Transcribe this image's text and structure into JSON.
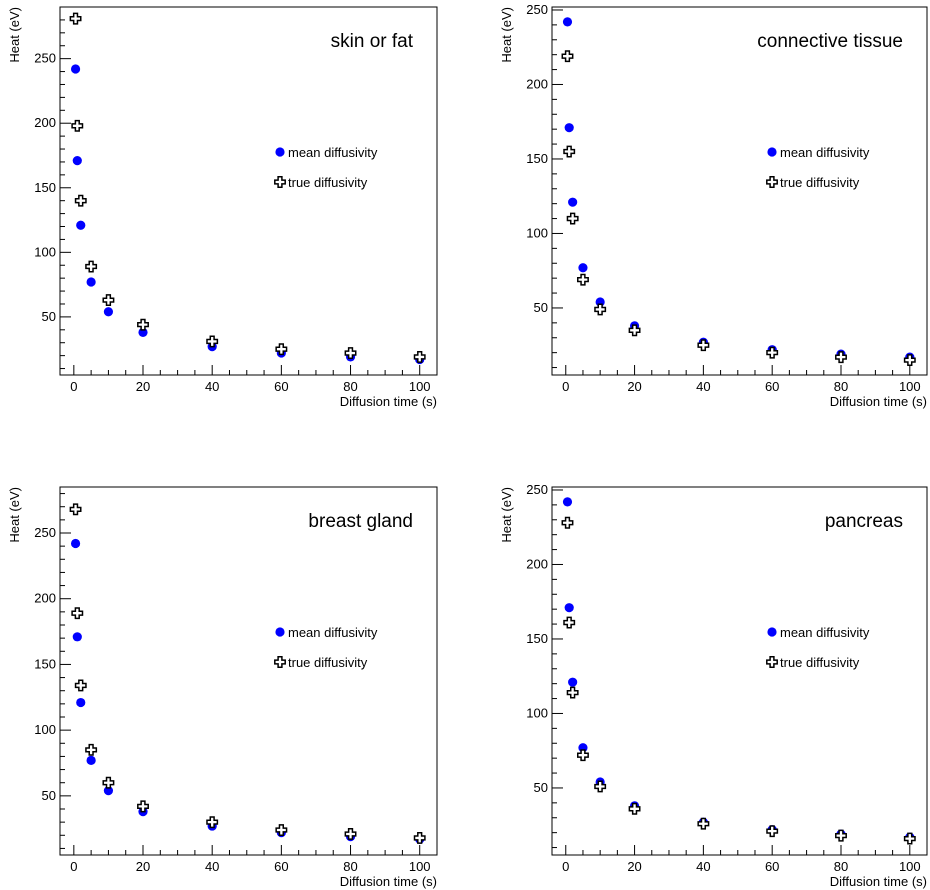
{
  "chart_data": [
    {
      "type": "scatter",
      "title": "skin or fat",
      "xlabel": "Diffusion time (s)",
      "ylabel": "Heat (eV)",
      "xlim": [
        -4,
        105
      ],
      "ylim": [
        5,
        290
      ],
      "xticks": [
        0,
        20,
        40,
        60,
        80,
        100
      ],
      "yticks": [
        50,
        100,
        150,
        200,
        250
      ],
      "legend_position": "right",
      "series": [
        {
          "name": "mean diffusivity",
          "marker": "circle",
          "color": "#0000ff",
          "x": [
            0.5,
            1,
            2,
            5,
            10,
            20,
            40,
            60,
            80,
            100
          ],
          "y": [
            242,
            171,
            121,
            77,
            54,
            38,
            27,
            22,
            19,
            17
          ]
        },
        {
          "name": "true diffusivity",
          "marker": "open-cross",
          "color": "#000000",
          "x": [
            0.5,
            1,
            2,
            5,
            10,
            20,
            40,
            60,
            80,
            100
          ],
          "y": [
            281,
            198,
            140,
            89,
            63,
            44,
            31,
            25,
            22,
            19
          ]
        }
      ]
    },
    {
      "type": "scatter",
      "title": "connective tissue",
      "xlabel": "Diffusion time (s)",
      "ylabel": "Heat (eV)",
      "xlim": [
        -4,
        105
      ],
      "ylim": [
        5,
        252
      ],
      "xticks": [
        0,
        20,
        40,
        60,
        80,
        100
      ],
      "yticks": [
        50,
        100,
        150,
        200,
        250
      ],
      "legend_position": "right",
      "series": [
        {
          "name": "mean diffusivity",
          "marker": "circle",
          "color": "#0000ff",
          "x": [
            0.5,
            1,
            2,
            5,
            10,
            20,
            40,
            60,
            80,
            100
          ],
          "y": [
            242,
            171,
            121,
            77,
            54,
            38,
            27,
            22,
            19,
            17
          ]
        },
        {
          "name": "true diffusivity",
          "marker": "open-cross",
          "color": "#000000",
          "x": [
            0.5,
            1,
            2,
            5,
            10,
            20,
            40,
            60,
            80,
            100
          ],
          "y": [
            219,
            155,
            110,
            69,
            49,
            35,
            25,
            20,
            17,
            15
          ]
        }
      ]
    },
    {
      "type": "scatter",
      "title": "breast gland",
      "xlabel": "Diffusion time (s)",
      "ylabel": "Heat (eV)",
      "xlim": [
        -4,
        105
      ],
      "ylim": [
        5,
        285
      ],
      "xticks": [
        0,
        20,
        40,
        60,
        80,
        100
      ],
      "yticks": [
        50,
        100,
        150,
        200,
        250
      ],
      "legend_position": "right",
      "series": [
        {
          "name": "mean diffusivity",
          "marker": "circle",
          "color": "#0000ff",
          "x": [
            0.5,
            1,
            2,
            5,
            10,
            20,
            40,
            60,
            80,
            100
          ],
          "y": [
            242,
            171,
            121,
            77,
            54,
            38,
            27,
            22,
            19,
            17
          ]
        },
        {
          "name": "true diffusivity",
          "marker": "open-cross",
          "color": "#000000",
          "x": [
            0.5,
            1,
            2,
            5,
            10,
            20,
            40,
            60,
            80,
            100
          ],
          "y": [
            268,
            189,
            134,
            85,
            60,
            42,
            30,
            24,
            21,
            18
          ]
        }
      ]
    },
    {
      "type": "scatter",
      "title": "pancreas",
      "xlabel": "Diffusion time (s)",
      "ylabel": "Heat (eV)",
      "xlim": [
        -4,
        105
      ],
      "ylim": [
        5,
        252
      ],
      "xticks": [
        0,
        20,
        40,
        60,
        80,
        100
      ],
      "yticks": [
        50,
        100,
        150,
        200,
        250
      ],
      "legend_position": "right",
      "series": [
        {
          "name": "mean diffusivity",
          "marker": "circle",
          "color": "#0000ff",
          "x": [
            0.5,
            1,
            2,
            5,
            10,
            20,
            40,
            60,
            80,
            100
          ],
          "y": [
            242,
            171,
            121,
            77,
            54,
            38,
            27,
            22,
            19,
            17
          ]
        },
        {
          "name": "true diffusivity",
          "marker": "open-cross",
          "color": "#000000",
          "x": [
            0.5,
            1,
            2,
            5,
            10,
            20,
            40,
            60,
            80,
            100
          ],
          "y": [
            228,
            161,
            114,
            72,
            51,
            36,
            26,
            21,
            18,
            16
          ]
        }
      ]
    }
  ]
}
